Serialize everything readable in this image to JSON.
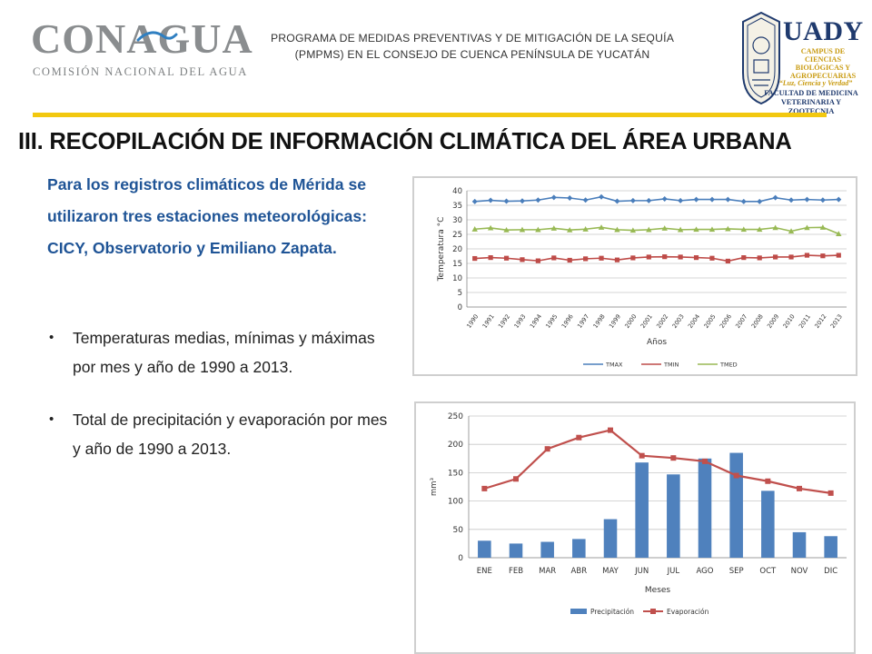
{
  "header": {
    "logo_left": {
      "word": "CONAGUA",
      "subtitle": "COMISIÓN NACIONAL DEL AGUA"
    },
    "program_line1": "PROGRAMA DE MEDIDAS PREVENTIVAS Y DE MITIGACIÓN DE LA SEQUÍA",
    "program_line2": "(PMPMS) EN EL CONSEJO DE CUENCA PENÍNSULA DE YUCATÁN",
    "logo_right": {
      "word": "UADY",
      "campus_lines": [
        "CAMPUS DE",
        "CIENCIAS",
        "BIOLÓGICAS Y",
        "AGROPECUARIAS"
      ],
      "motto": "“Luz, Ciencia y Verdad”",
      "faculty_lines": [
        "FACULTAD DE MEDICINA",
        "VETERINARIA Y ZOOTECNIA"
      ]
    }
  },
  "section_title": "III. RECOPILACIÓN DE INFORMACIÓN CLIMÁTICA DEL ÁREA URBANA",
  "intro": "Para los registros climáticos de Mérida se utilizaron tres estaciones meteorológicas: CICY, Observatorio y Emiliano Zapata.",
  "bullets": [
    {
      "text": "Temperaturas medias, mínimas y máximas por mes y año de 1990 a 2013."
    },
    {
      "text": "Total de precipitación y evaporación por mes y año de 1990 a 2013."
    }
  ],
  "colors": {
    "gold_rule": "#f2c80f",
    "intro_text": "#1f5496",
    "tmax": "#4a7ebb",
    "tmin": "#be4b48",
    "tmed": "#98b954",
    "bars": "#4f81bd",
    "evap": "#c0504d"
  },
  "chart_data": [
    {
      "type": "line",
      "xlabel": "Años",
      "ylabel": "Temperatura °C",
      "ylim": [
        0,
        40
      ],
      "yticks": [
        0,
        5,
        10,
        15,
        20,
        25,
        30,
        35,
        40
      ],
      "grid": true,
      "legend": "bottom",
      "categories": [
        "1990",
        "1991",
        "1992",
        "1993",
        "1994",
        "1995",
        "1996",
        "1997",
        "1998",
        "1999",
        "2000",
        "2001",
        "2002",
        "2003",
        "2004",
        "2005",
        "2006",
        "2007",
        "2008",
        "2009",
        "2010",
        "2011",
        "2012",
        "2013"
      ],
      "series": [
        {
          "name": "TMAX",
          "values": [
            36.3,
            36.7,
            36.4,
            36.5,
            36.8,
            37.7,
            37.5,
            36.8,
            37.9,
            36.4,
            36.6,
            36.6,
            37.2,
            36.6,
            37.0,
            37.0,
            37.0,
            36.3,
            36.3,
            37.6,
            36.8,
            37.0,
            36.8,
            37.0
          ]
        },
        {
          "name": "TMIN",
          "values": [
            16.7,
            17.0,
            16.8,
            16.3,
            15.9,
            16.9,
            16.1,
            16.6,
            16.8,
            16.2,
            16.9,
            17.2,
            17.3,
            17.2,
            17.0,
            16.8,
            15.8,
            17.0,
            16.9,
            17.2,
            17.2,
            17.8,
            17.6,
            17.8
          ]
        },
        {
          "name": "TMED",
          "values": [
            26.8,
            27.2,
            26.5,
            26.6,
            26.6,
            27.1,
            26.5,
            26.8,
            27.4,
            26.6,
            26.4,
            26.6,
            27.1,
            26.6,
            26.7,
            26.7,
            26.9,
            26.7,
            26.7,
            27.3,
            26.1,
            27.3,
            27.4,
            25.2
          ]
        }
      ]
    },
    {
      "type": "bar",
      "xlabel": "Meses",
      "ylabel": "mm³",
      "ylim": [
        0,
        250
      ],
      "yticks": [
        0,
        50,
        100,
        150,
        200,
        250
      ],
      "grid": true,
      "legend": "bottom",
      "categories": [
        "ENE",
        "FEB",
        "MAR",
        "ABR",
        "MAY",
        "JUN",
        "JUL",
        "AGO",
        "SEP",
        "OCT",
        "NOV",
        "DIC"
      ],
      "series": [
        {
          "name": "Precipitación",
          "type": "bar",
          "values": [
            30,
            25,
            28,
            33,
            68,
            168,
            147,
            175,
            185,
            118,
            45,
            38
          ]
        },
        {
          "name": "Evaporación",
          "type": "line",
          "values": [
            122,
            139,
            192,
            212,
            225,
            180,
            176,
            170,
            145,
            135,
            122,
            114
          ]
        }
      ]
    }
  ]
}
